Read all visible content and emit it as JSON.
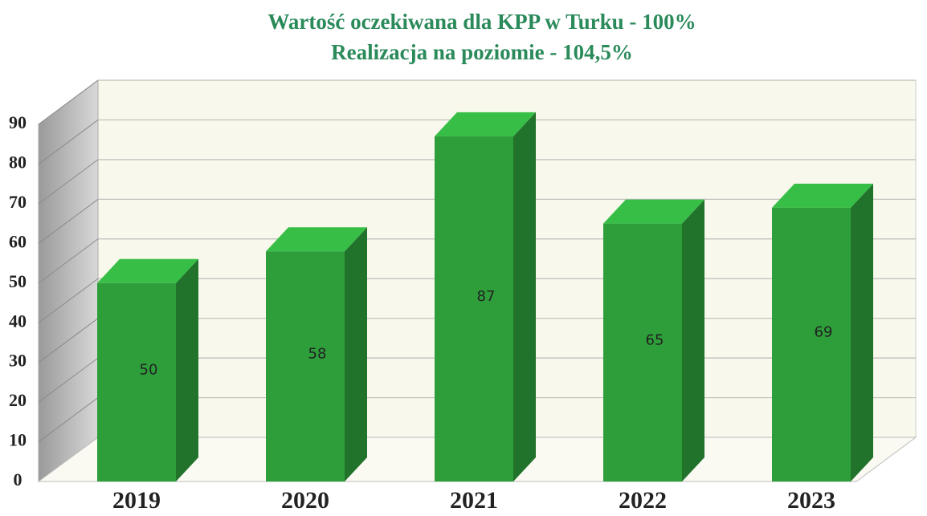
{
  "chart_data": {
    "type": "bar3d",
    "title": [
      "Wartość oczekiwana dla KPP w Turku - 100%",
      "Realizacja na poziomie - 104,5%"
    ],
    "categories": [
      "2019",
      "2020",
      "2021",
      "2022",
      "2023"
    ],
    "values": [
      50,
      58,
      87,
      65,
      69
    ],
    "color": "#2e9e3a",
    "ylim": [
      0,
      90
    ],
    "yticks": [
      0,
      10,
      20,
      30,
      40,
      50,
      60,
      70,
      80,
      90
    ],
    "grid": true
  }
}
